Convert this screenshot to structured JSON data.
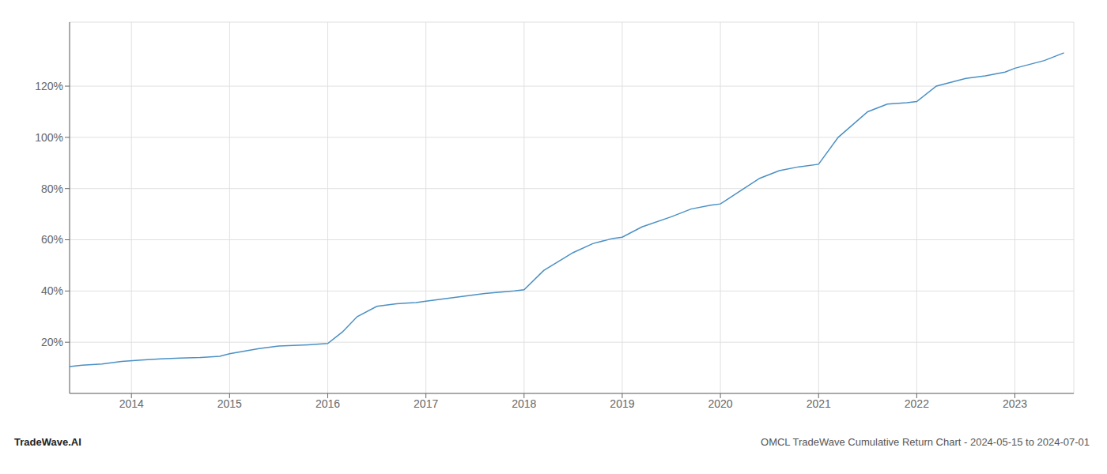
{
  "chart_data": {
    "type": "line",
    "title": "OMCL TradeWave Cumulative Return Chart - 2024-05-15 to 2024-07-01",
    "annotations": [
      "TradeWave.AI"
    ],
    "x": [
      2013.37,
      2013.5,
      2013.7,
      2013.9,
      2014.1,
      2014.3,
      2014.5,
      2014.7,
      2014.9,
      2015.0,
      2015.3,
      2015.5,
      2015.8,
      2016.0,
      2016.15,
      2016.3,
      2016.5,
      2016.7,
      2016.9,
      2017.0,
      2017.2,
      2017.4,
      2017.6,
      2017.9,
      2018.0,
      2018.2,
      2018.5,
      2018.7,
      2018.9,
      2019.0,
      2019.2,
      2019.5,
      2019.7,
      2019.9,
      2020.0,
      2020.2,
      2020.4,
      2020.6,
      2020.8,
      2021.0,
      2021.2,
      2021.5,
      2021.7,
      2021.9,
      2022.0,
      2022.2,
      2022.5,
      2022.7,
      2022.9,
      2023.0,
      2023.3,
      2023.5
    ],
    "values": [
      10.5,
      11.0,
      11.5,
      12.5,
      13.0,
      13.5,
      13.8,
      14.0,
      14.5,
      15.5,
      17.5,
      18.5,
      19.0,
      19.5,
      24.0,
      30.0,
      34.0,
      35.0,
      35.5,
      36.0,
      37.0,
      38.0,
      39.0,
      40.0,
      40.5,
      48.0,
      55.0,
      58.5,
      60.5,
      61.0,
      65.0,
      69.0,
      72.0,
      73.5,
      74.0,
      79.0,
      84.0,
      87.0,
      88.5,
      89.5,
      100.0,
      110.0,
      113.0,
      113.5,
      114.0,
      120.0,
      123.0,
      124.0,
      125.5,
      127.0,
      130.0,
      133.0
    ],
    "color": "#4a90c4",
    "xlim": [
      2013.37,
      2023.6
    ],
    "ylim": [
      0,
      145
    ],
    "xticks": [
      2014,
      2015,
      2016,
      2017,
      2018,
      2019,
      2020,
      2021,
      2022,
      2023
    ],
    "yticks": [
      {
        "value": 20,
        "label": "20%"
      },
      {
        "value": 40,
        "label": "40%"
      },
      {
        "value": 60,
        "label": "60%"
      },
      {
        "value": 80,
        "label": "80%"
      },
      {
        "value": 100,
        "label": "100%"
      },
      {
        "value": 120,
        "label": "120%"
      }
    ],
    "grid": true
  }
}
